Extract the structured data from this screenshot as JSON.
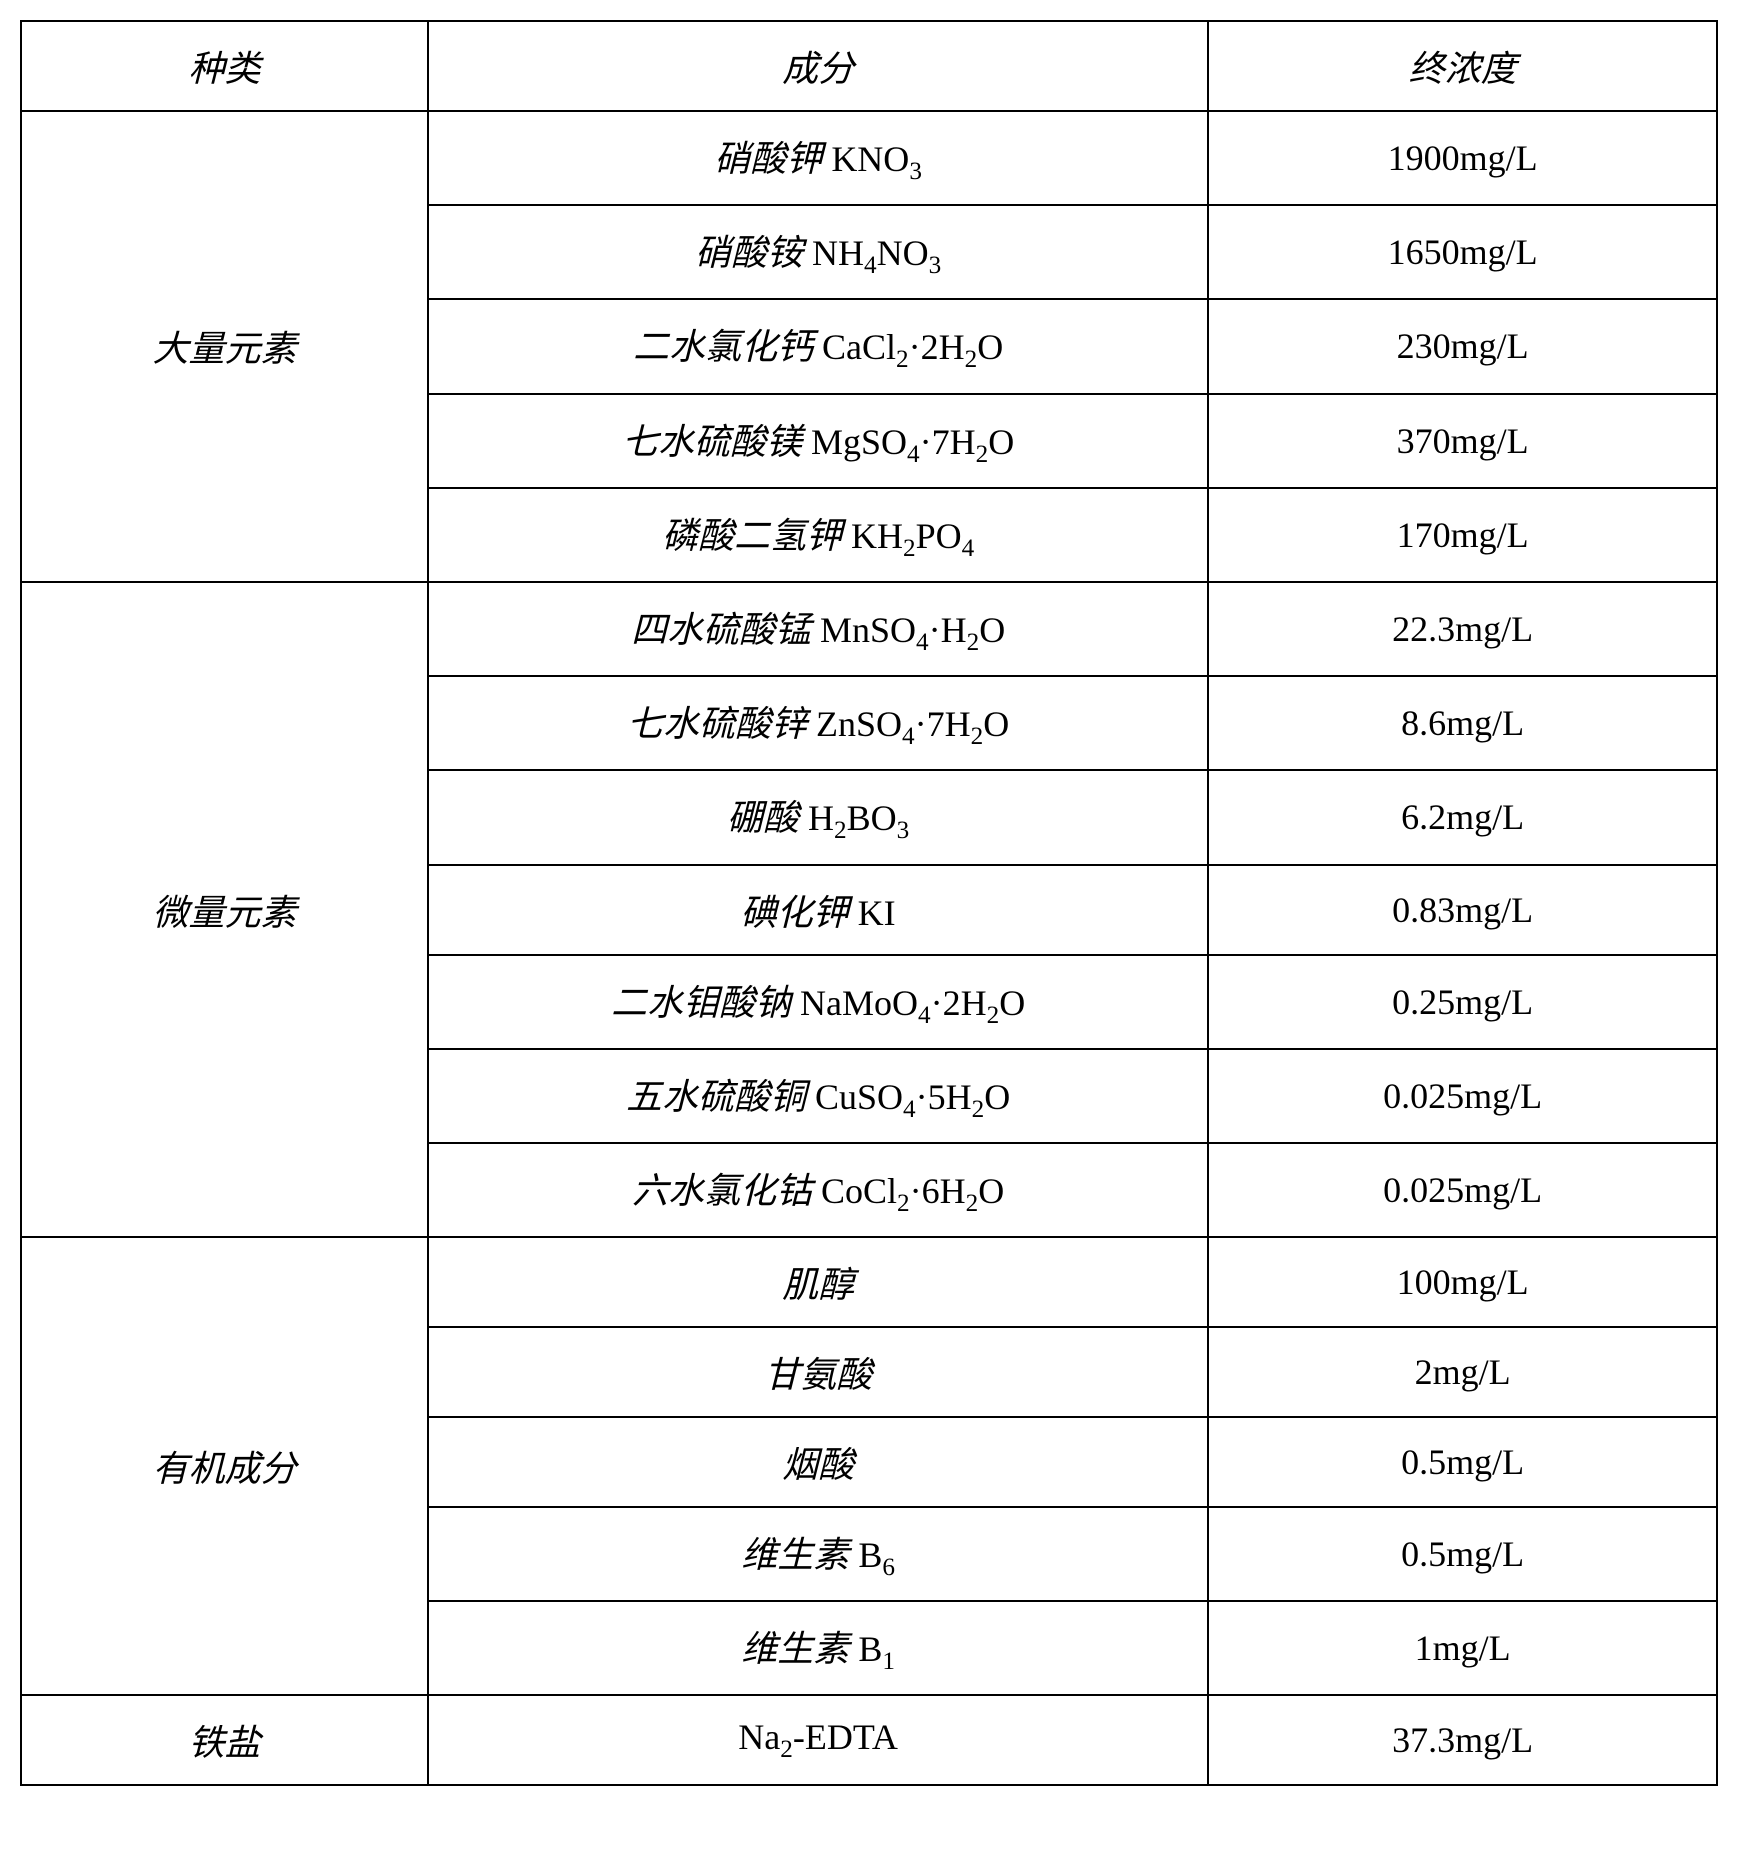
{
  "table": {
    "border_color": "#000000",
    "background_color": "#ffffff",
    "text_color": "#000000",
    "font_size": 36,
    "column_widths": [
      "24%",
      "46%",
      "30%"
    ],
    "headers": {
      "col1": "种类",
      "col2": "成分",
      "col3": "终浓度"
    },
    "groups": [
      {
        "category": "大量元素",
        "rows": [
          {
            "component_cn": "硝酸钾 ",
            "component_formula": "KNO",
            "sub1": "3",
            "concentration": "1900mg/L"
          },
          {
            "component_cn": "硝酸铵 ",
            "component_formula": "NH",
            "sub1": "4",
            "mid": "NO",
            "sub2": "3",
            "concentration": "1650mg/L"
          },
          {
            "component_cn": "二水氯化钙 ",
            "component_formula": "CaCl",
            "sub1": "2",
            "mid": "·2H",
            "sub2": "2",
            "tail": "O",
            "concentration": "230mg/L"
          },
          {
            "component_cn": "七水硫酸镁 ",
            "component_formula": "MgSO",
            "sub1": "4",
            "mid": "·7H",
            "sub2": "2",
            "tail": "O",
            "concentration": "370mg/L"
          },
          {
            "component_cn": "磷酸二氢钾 ",
            "component_formula": "KH",
            "sub1": "2",
            "mid": "PO",
            "sub2": "4",
            "concentration": "170mg/L"
          }
        ]
      },
      {
        "category": "微量元素",
        "rows": [
          {
            "component_cn": "四水硫酸锰 ",
            "component_formula": "MnSO",
            "sub1": "4",
            "mid": "·H",
            "sub2": "2",
            "tail": "O",
            "concentration": "22.3mg/L"
          },
          {
            "component_cn": "七水硫酸锌 ",
            "component_formula": "ZnSO",
            "sub1": "4",
            "mid": "·7H",
            "sub2": "2",
            "tail": "O",
            "concentration": "8.6mg/L"
          },
          {
            "component_cn": "硼酸 ",
            "component_formula": "H",
            "sub1": "2",
            "mid": "BO",
            "sub2": "3",
            "concentration": "6.2mg/L"
          },
          {
            "component_cn": "碘化钾 ",
            "component_formula": "KI",
            "concentration": "0.83mg/L"
          },
          {
            "component_cn": "二水钼酸钠 ",
            "component_formula": "NaMoO",
            "sub1": "4",
            "mid": "·2H",
            "sub2": "2",
            "tail": "O",
            "concentration": "0.25mg/L"
          },
          {
            "component_cn": "五水硫酸铜 ",
            "component_formula": "CuSO",
            "sub1": "4",
            "mid": "·5H",
            "sub2": "2",
            "tail": "O",
            "concentration": "0.025mg/L"
          },
          {
            "component_cn": "六水氯化钴 ",
            "component_formula": "CoCl",
            "sub1": "2",
            "mid": "·6H",
            "sub2": "2",
            "tail": "O",
            "concentration": "0.025mg/L"
          }
        ]
      },
      {
        "category": "有机成分",
        "rows": [
          {
            "component_cn": "肌醇",
            "concentration": "100mg/L"
          },
          {
            "component_cn": "甘氨酸",
            "concentration": "2mg/L"
          },
          {
            "component_cn": "烟酸",
            "concentration": "0.5mg/L"
          },
          {
            "component_cn": "维生素 ",
            "component_formula": "B",
            "sub1": "6",
            "concentration": "0.5mg/L"
          },
          {
            "component_cn": "维生素 ",
            "component_formula": "B",
            "sub1": "1",
            "concentration": "1mg/L"
          }
        ]
      },
      {
        "category": "铁盐",
        "rows": [
          {
            "component_formula": "Na",
            "sub1": "2",
            "mid": "-EDTA",
            "concentration": "37.3mg/L"
          }
        ]
      }
    ]
  }
}
